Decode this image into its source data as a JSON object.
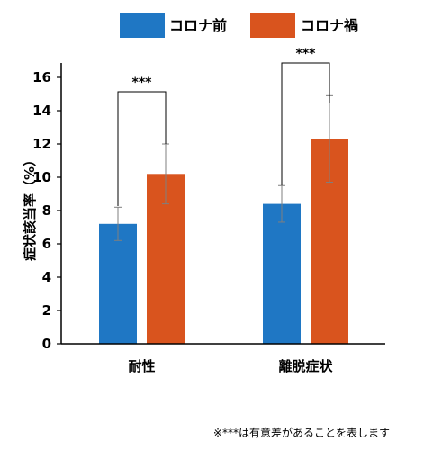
{
  "chart_data": {
    "type": "bar",
    "categories": [
      "耐性",
      "離脱症状"
    ],
    "series": [
      {
        "name": "コロナ前",
        "color": "#1f77c4",
        "values": [
          7.2,
          8.4
        ],
        "error": [
          1.0,
          1.1
        ]
      },
      {
        "name": "コロナ禍",
        "color": "#d9541e",
        "values": [
          10.2,
          12.3
        ],
        "error": [
          1.8,
          2.6
        ]
      }
    ],
    "ylabel": "症状該当率（%）",
    "ylim": [
      0,
      16
    ],
    "yticks": [
      0,
      2,
      4,
      6,
      8,
      10,
      12,
      14,
      16
    ],
    "legend_position": "top",
    "grid": false,
    "significance": [
      "***",
      "***"
    ]
  },
  "footnote": "※***は有意差があることを表します"
}
